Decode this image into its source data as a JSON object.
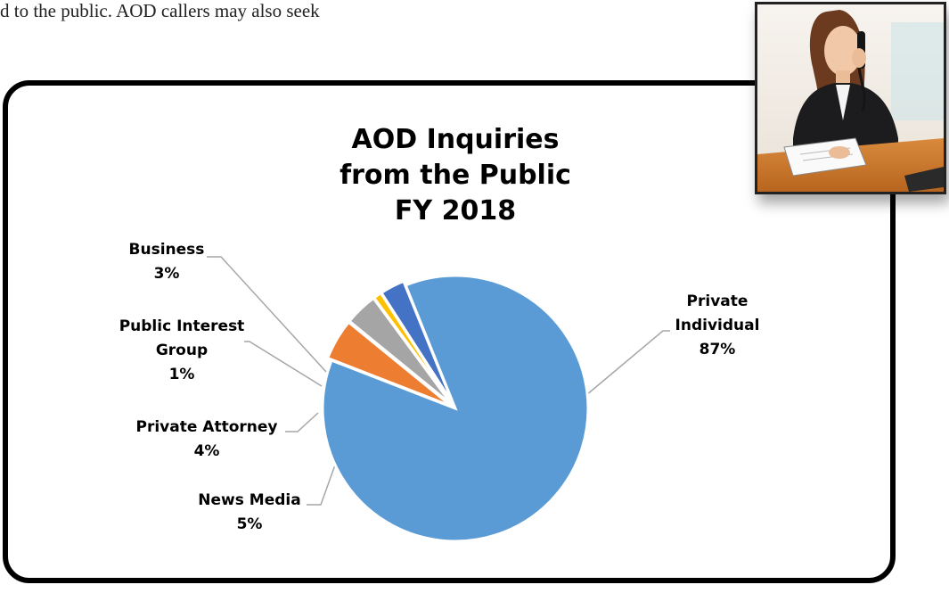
{
  "page": {
    "body_text": "d to the public. AOD callers may also seek"
  },
  "chart_data": {
    "type": "pie",
    "title_lines": [
      "AOD Inquiries",
      "from the Public",
      "FY 2018"
    ],
    "slices": [
      {
        "label_lines": [
          "Private",
          "Individual"
        ],
        "value": 87,
        "pct_label": "87%",
        "color": "#5B9BD5"
      },
      {
        "label_lines": [
          "News Media"
        ],
        "value": 5,
        "pct_label": "5%",
        "color": "#ED7D31"
      },
      {
        "label_lines": [
          "Private Attorney"
        ],
        "value": 4,
        "pct_label": "4%",
        "color": "#A5A5A5"
      },
      {
        "label_lines": [
          "Public Interest",
          "Group"
        ],
        "value": 1,
        "pct_label": "1%",
        "color": "#FFC000"
      },
      {
        "label_lines": [
          "Business"
        ],
        "value": 3,
        "pct_label": "3%",
        "color": "#4472C4"
      }
    ]
  },
  "photo": {
    "subject": "woman-on-phone-photo"
  }
}
